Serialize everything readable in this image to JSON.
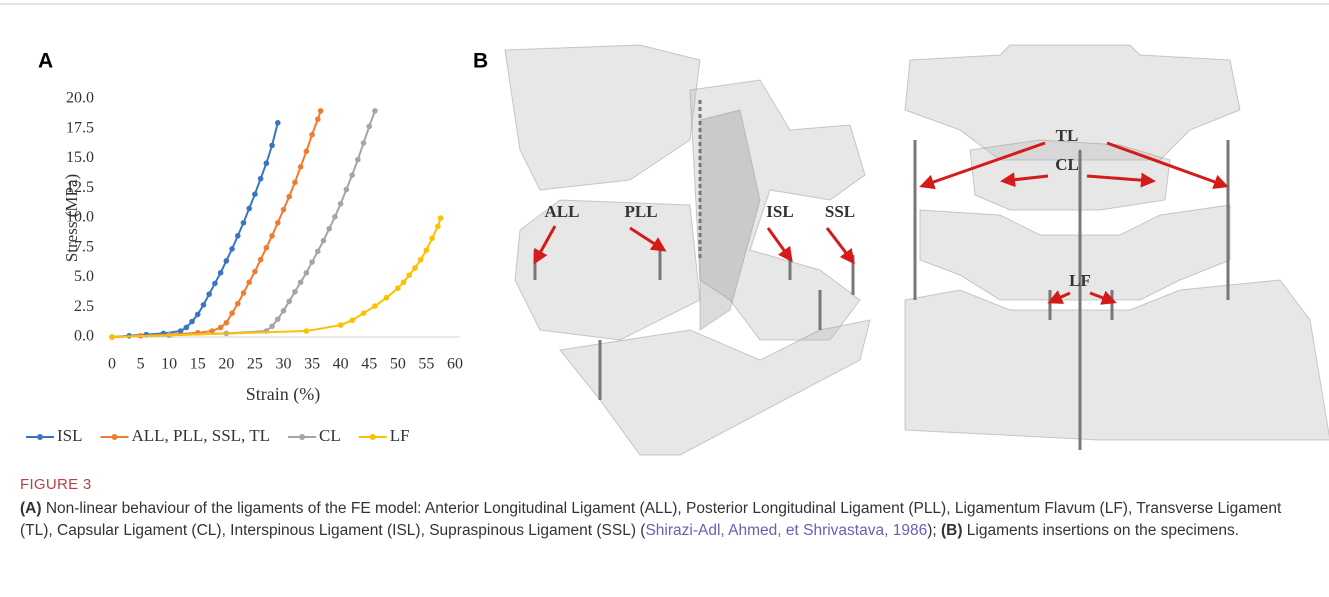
{
  "panel_a": "A",
  "panel_b": "B",
  "chart_data": {
    "type": "line",
    "y_label": "Stress (MPa)",
    "x_label": "Strain (%)",
    "xlim": [
      0,
      60
    ],
    "xticks": [
      0,
      5,
      10,
      15,
      20,
      25,
      30,
      35,
      40,
      45,
      50,
      55,
      60
    ],
    "ylim": [
      0,
      20
    ],
    "yticks": [
      {
        "value": 0,
        "label": "0.0"
      },
      2.5,
      {
        "value": 5,
        "label": "5.0"
      },
      7.5,
      {
        "value": 10,
        "label": "10.0"
      },
      12.5,
      {
        "value": 15,
        "label": "15.0"
      },
      17.5,
      {
        "value": 20,
        "label": "20.0"
      }
    ],
    "grid": false,
    "legend": "bottom",
    "series": [
      {
        "name": "ISL",
        "color": "#3a75c4",
        "x": [
          0,
          3,
          6,
          9,
          12,
          13,
          14,
          15,
          16,
          17,
          18,
          19,
          20,
          21,
          22,
          23,
          24,
          25,
          26,
          27,
          28,
          29
        ],
        "values": [
          0,
          0.1,
          0.2,
          0.3,
          0.5,
          0.8,
          1.3,
          1.9,
          2.7,
          3.6,
          4.5,
          5.4,
          6.4,
          7.4,
          8.5,
          9.6,
          10.8,
          12,
          13.3,
          14.6,
          16.1,
          18
        ]
      },
      {
        "name": "ALL, PLL, SSL, TL",
        "color": "#ee7d31",
        "x": [
          0,
          5,
          10,
          15,
          17.5,
          19,
          20,
          21,
          22,
          23,
          24,
          25,
          26,
          27,
          28,
          29,
          30,
          31,
          32,
          33,
          34,
          35,
          36,
          36.5
        ],
        "values": [
          0,
          0.1,
          0.2,
          0.35,
          0.5,
          0.8,
          1.2,
          2,
          2.8,
          3.7,
          4.6,
          5.5,
          6.5,
          7.5,
          8.5,
          9.6,
          10.7,
          11.8,
          13,
          14.3,
          15.6,
          17,
          18.3,
          19
        ]
      },
      {
        "name": "CL",
        "color": "#a5a5a5",
        "x": [
          0,
          10,
          20,
          27,
          28,
          29,
          30,
          31,
          32,
          33,
          34,
          35,
          36,
          37,
          38,
          39,
          40,
          41,
          42,
          43,
          44,
          45,
          46
        ],
        "values": [
          0,
          0.15,
          0.3,
          0.5,
          0.9,
          1.5,
          2.2,
          3,
          3.8,
          4.6,
          5.4,
          6.3,
          7.2,
          8.1,
          9.1,
          10.1,
          11.2,
          12.4,
          13.6,
          14.9,
          16.3,
          17.7,
          19
        ]
      },
      {
        "name": "LF",
        "color": "#fdc000",
        "x": [
          0,
          34,
          40,
          42,
          44,
          46,
          48,
          50,
          51,
          52,
          53,
          54,
          55,
          56,
          57,
          57.5
        ],
        "values": [
          0,
          0.5,
          1,
          1.4,
          2,
          2.6,
          3.3,
          4.1,
          4.6,
          5.2,
          5.8,
          6.5,
          7.3,
          8.3,
          9.3,
          10
        ]
      }
    ]
  },
  "diagram": {
    "labels": [
      "ALL",
      "PLL",
      "ISL",
      "SSL",
      "TL",
      "CL",
      "LF"
    ]
  },
  "caption": {
    "label": "FIGURE 3",
    "bold_a": "(A)",
    "text_a": " Non-linear behaviour of the ligaments of the FE model: Anterior Longitudinal Ligament (ALL), Posterior Longitudinal Ligament (PLL), Ligamentum Flavum (LF), Transverse Ligament (TL), Capsular Ligament (CL), Interspinous Ligament (ISL), Supraspinous Ligament (SSL) (",
    "citation": "Shirazi-Adl, Ahmed, et Shrivastava, 1986",
    "separator": "); ",
    "bold_b": "(B)",
    "text_b": " Ligaments insertions on the specimens."
  }
}
